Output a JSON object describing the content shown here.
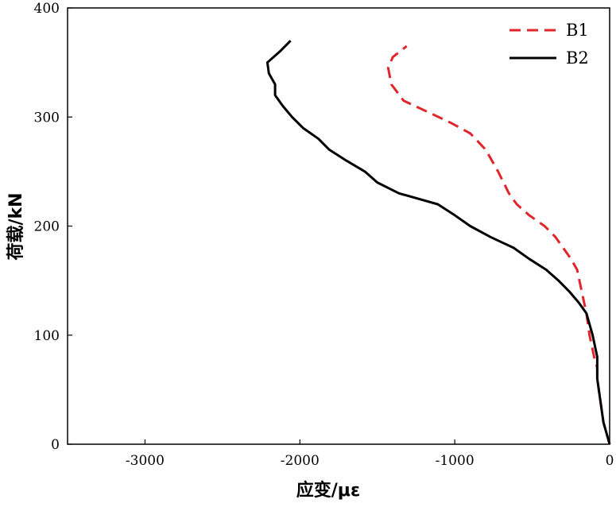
{
  "chart_data": {
    "type": "line",
    "xlabel": "应变/με",
    "ylabel": "荷载/kN",
    "xlim": [
      -3500,
      0
    ],
    "ylim": [
      0,
      400
    ],
    "xticks": [
      -3000,
      -2000,
      -1000,
      0
    ],
    "xtick_labels": [
      "-3000",
      "-2000",
      "-1000",
      "0"
    ],
    "yticks": [
      0,
      100,
      200,
      300,
      400
    ],
    "ytick_labels": [
      "0",
      "100",
      "200",
      "300",
      "400"
    ],
    "grid": false,
    "legend_position": "top-right",
    "series": [
      {
        "name": "B1",
        "color": "#e0262a",
        "dash": "dashed",
        "points": [
          [
            0,
            0
          ],
          [
            -40,
            20
          ],
          [
            -60,
            40
          ],
          [
            -80,
            60
          ],
          [
            -80,
            70
          ],
          [
            -100,
            80
          ],
          [
            -130,
            100
          ],
          [
            -150,
            120
          ],
          [
            -180,
            140
          ],
          [
            -210,
            160
          ],
          [
            -250,
            170
          ],
          [
            -300,
            180
          ],
          [
            -350,
            190
          ],
          [
            -420,
            200
          ],
          [
            -520,
            210
          ],
          [
            -600,
            220
          ],
          [
            -650,
            230
          ],
          [
            -720,
            250
          ],
          [
            -800,
            270
          ],
          [
            -900,
            285
          ],
          [
            -1030,
            295
          ],
          [
            -1180,
            305
          ],
          [
            -1330,
            315
          ],
          [
            -1410,
            330
          ],
          [
            -1430,
            345
          ],
          [
            -1400,
            355
          ],
          [
            -1310,
            365
          ]
        ]
      },
      {
        "name": "B2",
        "color": "#000000",
        "dash": "solid",
        "points": [
          [
            0,
            0
          ],
          [
            -40,
            20
          ],
          [
            -60,
            40
          ],
          [
            -80,
            60
          ],
          [
            -80,
            80
          ],
          [
            -110,
            100
          ],
          [
            -150,
            120
          ],
          [
            -200,
            130
          ],
          [
            -260,
            140
          ],
          [
            -330,
            150
          ],
          [
            -410,
            160
          ],
          [
            -520,
            170
          ],
          [
            -620,
            180
          ],
          [
            -770,
            190
          ],
          [
            -900,
            200
          ],
          [
            -1000,
            210
          ],
          [
            -1110,
            220
          ],
          [
            -1360,
            230
          ],
          [
            -1500,
            240
          ],
          [
            -1580,
            250
          ],
          [
            -1700,
            260
          ],
          [
            -1810,
            270
          ],
          [
            -1880,
            280
          ],
          [
            -1980,
            290
          ],
          [
            -2050,
            300
          ],
          [
            -2110,
            310
          ],
          [
            -2160,
            320
          ],
          [
            -2160,
            330
          ],
          [
            -2200,
            340
          ],
          [
            -2210,
            350
          ],
          [
            -2170,
            355
          ],
          [
            -2130,
            360
          ],
          [
            -2060,
            370
          ]
        ]
      }
    ]
  }
}
